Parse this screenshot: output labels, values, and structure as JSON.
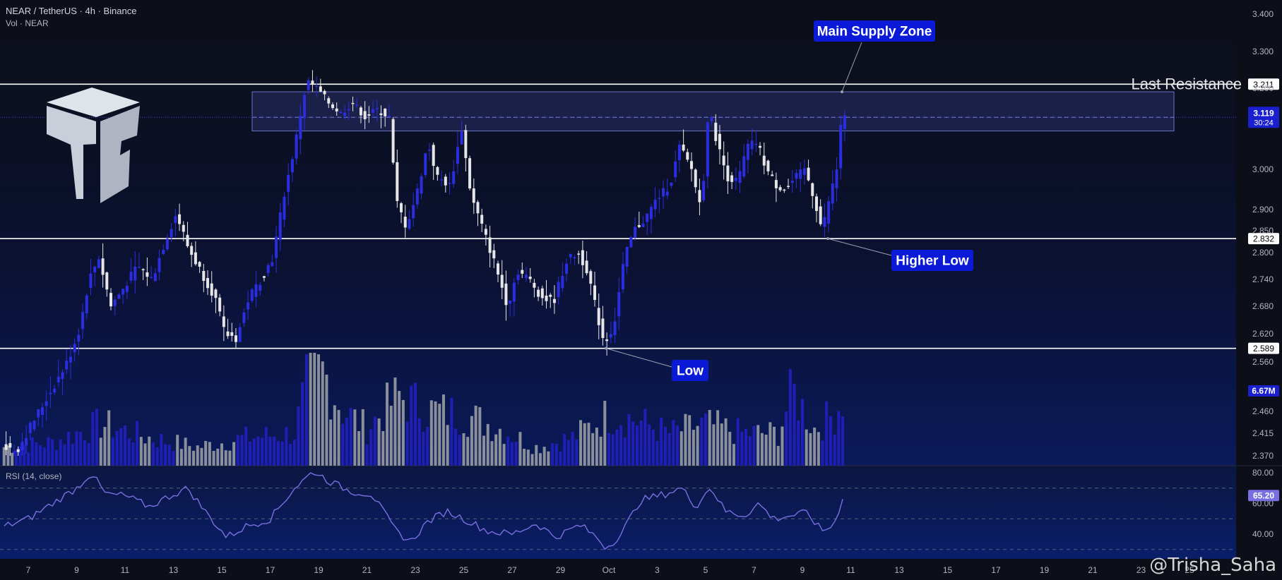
{
  "header": {
    "symbol_line": "NEAR / TetherUS · 4h · Binance",
    "vol_line": "Vol · NEAR",
    "rsi_line": "RSI (14, close)"
  },
  "watermark": "@Trisha_Saha",
  "colors": {
    "background": "#0c0f17",
    "up_candle": "#2b2de0",
    "down_candle": "#e6e6e6",
    "volume_up": "#1f1fb8",
    "volume_down": "#8a8f9a",
    "rsi_line": "#7a6fe0",
    "zone_fill": "#3a3f8f",
    "label_bg": "#0b1ad6"
  },
  "chart_data": {
    "type": "candlestick",
    "price_axis_ticks": [
      "3.400",
      "3.300",
      "3.200",
      "3.100",
      "3.000",
      "2.900",
      "2.850",
      "2.800",
      "2.740",
      "2.680",
      "2.620",
      "2.560",
      "2.460",
      "2.415",
      "2.370"
    ],
    "rsi_axis_ticks": [
      "80.00",
      "60.00",
      "40.00"
    ],
    "x_tick_labels": [
      "7",
      "9",
      "11",
      "13",
      "15",
      "17",
      "19",
      "21",
      "23",
      "25",
      "27",
      "29",
      "Oct",
      "3",
      "5",
      "7",
      "9",
      "11",
      "13",
      "15",
      "17",
      "19",
      "21",
      "23",
      "25"
    ],
    "horizontal_levels": [
      {
        "price": 3.211,
        "label": "3.211",
        "annotation": "Last Resistance"
      },
      {
        "price": 2.832,
        "label": "2.832"
      },
      {
        "price": 2.589,
        "label": "2.589"
      }
    ],
    "supply_zone": {
      "top": 3.19,
      "bottom": 3.085,
      "mid": 3.119
    },
    "current_price": {
      "label": "3.119",
      "countdown": "30:24"
    },
    "volume_badge": "6.67M",
    "rsi_badge": "65.20",
    "annotations": [
      {
        "text": "Main Supply Zone"
      },
      {
        "text": "Higher Low"
      },
      {
        "text": "Low"
      }
    ],
    "price_path": [
      {
        "day": 6.0,
        "price": 2.39
      },
      {
        "day": 6.6,
        "price": 2.38
      },
      {
        "day": 7.3,
        "price": 2.44
      },
      {
        "day": 8.0,
        "price": 2.5
      },
      {
        "day": 8.7,
        "price": 2.56
      },
      {
        "day": 9.2,
        "price": 2.63
      },
      {
        "day": 9.6,
        "price": 2.74
      },
      {
        "day": 10.0,
        "price": 2.79
      },
      {
        "day": 10.5,
        "price": 2.68
      },
      {
        "day": 11.0,
        "price": 2.72
      },
      {
        "day": 11.6,
        "price": 2.77
      },
      {
        "day": 12.2,
        "price": 2.74
      },
      {
        "day": 12.7,
        "price": 2.82
      },
      {
        "day": 13.2,
        "price": 2.89
      },
      {
        "day": 13.7,
        "price": 2.81
      },
      {
        "day": 14.2,
        "price": 2.76
      },
      {
        "day": 14.8,
        "price": 2.7
      },
      {
        "day": 15.2,
        "price": 2.62
      },
      {
        "day": 15.7,
        "price": 2.61
      },
      {
        "day": 16.2,
        "price": 2.7
      },
      {
        "day": 16.7,
        "price": 2.74
      },
      {
        "day": 17.2,
        "price": 2.79
      },
      {
        "day": 17.7,
        "price": 2.95
      },
      {
        "day": 18.2,
        "price": 3.08
      },
      {
        "day": 18.6,
        "price": 3.22
      },
      {
        "day": 19.0,
        "price": 3.2
      },
      {
        "day": 19.5,
        "price": 3.16
      },
      {
        "day": 20.0,
        "price": 3.13
      },
      {
        "day": 20.5,
        "price": 3.16
      },
      {
        "day": 21.0,
        "price": 3.12
      },
      {
        "day": 21.5,
        "price": 3.14
      },
      {
        "day": 22.0,
        "price": 3.12
      },
      {
        "day": 22.3,
        "price": 2.92
      },
      {
        "day": 22.7,
        "price": 2.86
      },
      {
        "day": 23.1,
        "price": 2.93
      },
      {
        "day": 23.6,
        "price": 3.06
      },
      {
        "day": 24.0,
        "price": 2.98
      },
      {
        "day": 24.5,
        "price": 2.96
      },
      {
        "day": 25.0,
        "price": 3.09
      },
      {
        "day": 25.4,
        "price": 2.93
      },
      {
        "day": 25.9,
        "price": 2.85
      },
      {
        "day": 26.4,
        "price": 2.77
      },
      {
        "day": 26.9,
        "price": 2.68
      },
      {
        "day": 27.3,
        "price": 2.76
      },
      {
        "day": 27.8,
        "price": 2.74
      },
      {
        "day": 28.3,
        "price": 2.7
      },
      {
        "day": 28.8,
        "price": 2.69
      },
      {
        "day": 29.3,
        "price": 2.78
      },
      {
        "day": 29.8,
        "price": 2.8
      },
      {
        "day": 30.2,
        "price": 2.76
      },
      {
        "day": 30.6,
        "price": 2.66
      },
      {
        "day": 30.9,
        "price": 2.6
      },
      {
        "day": 31.3,
        "price": 2.64
      },
      {
        "day": 31.7,
        "price": 2.78
      },
      {
        "day": 32.1,
        "price": 2.85
      },
      {
        "day": 32.6,
        "price": 2.88
      },
      {
        "day": 33.1,
        "price": 2.93
      },
      {
        "day": 33.6,
        "price": 2.96
      },
      {
        "day": 34.0,
        "price": 3.05
      },
      {
        "day": 34.5,
        "price": 3.0
      },
      {
        "day": 34.9,
        "price": 2.9
      },
      {
        "day": 35.2,
        "price": 3.14
      },
      {
        "day": 35.6,
        "price": 3.05
      },
      {
        "day": 36.0,
        "price": 2.98
      },
      {
        "day": 36.4,
        "price": 2.97
      },
      {
        "day": 36.8,
        "price": 3.05
      },
      {
        "day": 37.2,
        "price": 3.06
      },
      {
        "day": 37.6,
        "price": 3.0
      },
      {
        "day": 38.0,
        "price": 2.96
      },
      {
        "day": 38.4,
        "price": 2.95
      },
      {
        "day": 38.8,
        "price": 2.98
      },
      {
        "day": 39.2,
        "price": 3.0
      },
      {
        "day": 39.6,
        "price": 2.92
      },
      {
        "day": 39.9,
        "price": 2.85
      },
      {
        "day": 40.2,
        "price": 2.93
      },
      {
        "day": 40.5,
        "price": 3.0
      },
      {
        "day": 40.7,
        "price": 3.119
      }
    ],
    "volume_path": [
      {
        "day": 6.0,
        "vol": 0.2
      },
      {
        "day": 8.0,
        "vol": 0.25
      },
      {
        "day": 10.0,
        "vol": 0.45
      },
      {
        "day": 12.0,
        "vol": 0.3
      },
      {
        "day": 14.0,
        "vol": 0.2
      },
      {
        "day": 16.0,
        "vol": 0.3
      },
      {
        "day": 18.0,
        "vol": 0.35
      },
      {
        "day": 18.6,
        "vol": 0.95
      },
      {
        "day": 19.2,
        "vol": 1.0
      },
      {
        "day": 20.0,
        "vol": 0.6
      },
      {
        "day": 21.0,
        "vol": 0.4
      },
      {
        "day": 22.3,
        "vol": 0.75
      },
      {
        "day": 23.5,
        "vol": 0.6
      },
      {
        "day": 25.0,
        "vol": 0.55
      },
      {
        "day": 26.5,
        "vol": 0.4
      },
      {
        "day": 28.0,
        "vol": 0.2
      },
      {
        "day": 29.5,
        "vol": 0.3
      },
      {
        "day": 31.0,
        "vol": 0.55
      },
      {
        "day": 32.0,
        "vol": 0.5
      },
      {
        "day": 33.5,
        "vol": 0.35
      },
      {
        "day": 35.0,
        "vol": 0.45
      },
      {
        "day": 36.5,
        "vol": 0.35
      },
      {
        "day": 38.0,
        "vol": 0.35
      },
      {
        "day": 38.6,
        "vol": 0.8
      },
      {
        "day": 39.5,
        "vol": 0.4
      },
      {
        "day": 40.3,
        "vol": 0.55
      },
      {
        "day": 40.7,
        "vol": 0.75
      }
    ],
    "rsi_path": [
      {
        "day": 6.0,
        "rsi": 45
      },
      {
        "day": 7.0,
        "rsi": 50
      },
      {
        "day": 8.0,
        "rsi": 60
      },
      {
        "day": 9.0,
        "rsi": 70
      },
      {
        "day": 9.6,
        "rsi": 80
      },
      {
        "day": 10.2,
        "rsi": 66
      },
      {
        "day": 11.0,
        "rsi": 65
      },
      {
        "day": 12.0,
        "rsi": 58
      },
      {
        "day": 13.0,
        "rsi": 66
      },
      {
        "day": 13.6,
        "rsi": 70
      },
      {
        "day": 14.3,
        "rsi": 55
      },
      {
        "day": 15.2,
        "rsi": 38
      },
      {
        "day": 16.0,
        "rsi": 45
      },
      {
        "day": 17.0,
        "rsi": 50
      },
      {
        "day": 18.0,
        "rsi": 70
      },
      {
        "day": 18.8,
        "rsi": 81
      },
      {
        "day": 19.5,
        "rsi": 74
      },
      {
        "day": 20.3,
        "rsi": 68
      },
      {
        "day": 21.2,
        "rsi": 66
      },
      {
        "day": 22.2,
        "rsi": 42
      },
      {
        "day": 22.8,
        "rsi": 35
      },
      {
        "day": 23.5,
        "rsi": 48
      },
      {
        "day": 24.3,
        "rsi": 55
      },
      {
        "day": 25.0,
        "rsi": 50
      },
      {
        "day": 26.0,
        "rsi": 42
      },
      {
        "day": 27.0,
        "rsi": 40
      },
      {
        "day": 28.0,
        "rsi": 47
      },
      {
        "day": 28.8,
        "rsi": 38
      },
      {
        "day": 29.8,
        "rsi": 46
      },
      {
        "day": 30.5,
        "rsi": 38
      },
      {
        "day": 30.9,
        "rsi": 31
      },
      {
        "day": 31.5,
        "rsi": 40
      },
      {
        "day": 32.3,
        "rsi": 62
      },
      {
        "day": 33.3,
        "rsi": 66
      },
      {
        "day": 34.0,
        "rsi": 70
      },
      {
        "day": 34.6,
        "rsi": 58
      },
      {
        "day": 35.2,
        "rsi": 71
      },
      {
        "day": 35.8,
        "rsi": 55
      },
      {
        "day": 36.6,
        "rsi": 52
      },
      {
        "day": 37.2,
        "rsi": 60
      },
      {
        "day": 37.8,
        "rsi": 50
      },
      {
        "day": 38.5,
        "rsi": 52
      },
      {
        "day": 39.2,
        "rsi": 54
      },
      {
        "day": 39.8,
        "rsi": 42
      },
      {
        "day": 40.3,
        "rsi": 46
      },
      {
        "day": 40.7,
        "rsi": 65.2
      }
    ]
  }
}
